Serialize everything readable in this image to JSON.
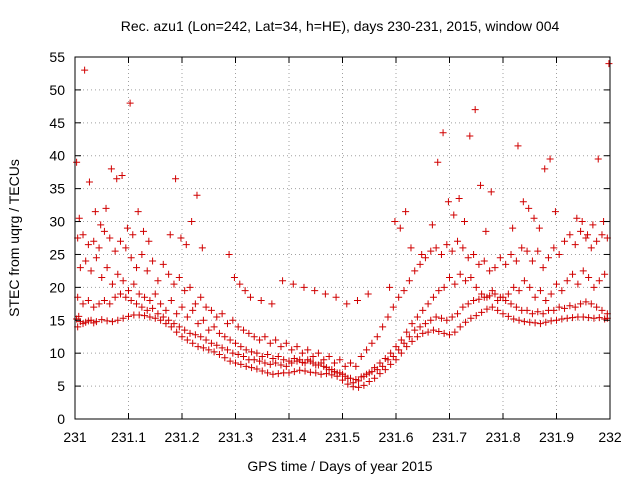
{
  "chart_data": {
    "type": "scatter",
    "title": "Rec. azu1 (Lon=242, Lat=34, h=HE), days 230-231, 2015, window 004",
    "xlabel": "GPS time / Days of year 2015",
    "ylabel": "STEC from uqrg / TECUs",
    "xlim": [
      231,
      232
    ],
    "ylim": [
      0,
      55
    ],
    "x_ticks": [
      "231",
      "231.1",
      "231.2",
      "231.3",
      "231.4",
      "231.5",
      "231.6",
      "231.7",
      "231.8",
      "231.9",
      "232"
    ],
    "y_ticks": [
      "0",
      "5",
      "10",
      "15",
      "20",
      "25",
      "30",
      "35",
      "40",
      "45",
      "50",
      "55"
    ],
    "grid": true,
    "marker": "+",
    "marker_color": "#d00000",
    "series": [
      {
        "x": [
          231.003,
          231.005,
          231.007,
          231.01,
          231.015,
          231.02,
          231.025,
          231.03,
          231.035,
          231.04,
          231.05,
          231.06,
          231.07,
          231.08,
          231.09,
          231.1,
          231.11,
          231.12,
          231.13,
          231.14,
          231.15,
          231.16,
          231.17,
          231.18,
          231.19,
          231.2,
          231.21,
          231.22,
          231.23,
          231.24,
          231.25,
          231.26,
          231.27,
          231.28,
          231.29,
          231.3,
          231.31,
          231.32,
          231.33,
          231.34,
          231.35,
          231.36,
          231.37,
          231.38,
          231.39,
          231.4,
          231.41,
          231.42,
          231.43,
          231.44,
          231.45,
          231.46,
          231.47,
          231.48,
          231.49,
          231.5,
          231.51,
          231.52,
          231.53,
          231.54,
          231.55,
          231.56,
          231.57,
          231.58,
          231.59,
          231.6,
          231.61,
          231.62,
          231.63,
          231.64,
          231.65,
          231.66,
          231.67,
          231.68,
          231.69,
          231.7,
          231.71,
          231.72,
          231.73,
          231.74,
          231.75,
          231.76,
          231.77,
          231.78,
          231.79,
          231.8,
          231.81,
          231.82,
          231.83,
          231.84,
          231.85,
          231.86,
          231.87,
          231.88,
          231.89,
          231.9,
          231.91,
          231.92,
          231.93,
          231.94,
          231.95,
          231.96,
          231.97,
          231.98,
          231.99,
          231.995
        ],
        "y": [
          15.2,
          14.0,
          15.6,
          14.8,
          14.5,
          14.7,
          14.9,
          15.0,
          14.6,
          14.8,
          15.1,
          14.9,
          14.8,
          15.0,
          15.3,
          15.6,
          15.8,
          15.8,
          15.7,
          15.5,
          15.3,
          15.0,
          14.5,
          14.0,
          13.2,
          12.5,
          12.0,
          11.5,
          11.0,
          10.8,
          10.5,
          10.2,
          9.8,
          9.3,
          8.8,
          8.5,
          8.3,
          8.0,
          7.8,
          7.6,
          7.3,
          7.0,
          6.8,
          6.9,
          7.0,
          7.0,
          7.2,
          7.4,
          7.3,
          7.1,
          7.0,
          6.8,
          6.9,
          6.7,
          6.5,
          5.9,
          5.3,
          4.9,
          4.8,
          5.1,
          5.7,
          6.2,
          6.9,
          7.5,
          8.3,
          9.0,
          10.0,
          11.0,
          11.8,
          12.5,
          13.0,
          13.2,
          13.5,
          13.3,
          13.0,
          12.8,
          13.2,
          14.0,
          14.7,
          15.3,
          15.7,
          16.2,
          16.7,
          17.0,
          16.5,
          16.0,
          15.6,
          15.2,
          15.0,
          14.8,
          14.7,
          14.6,
          14.5,
          14.7,
          14.9,
          15.0,
          15.2,
          15.3,
          15.4,
          15.5,
          15.5,
          15.4,
          15.3,
          15.4,
          15.2,
          15.3
        ]
      },
      {
        "x": [
          231.005,
          231.015,
          231.025,
          231.035,
          231.045,
          231.055,
          231.065,
          231.075,
          231.085,
          231.095,
          231.105,
          231.115,
          231.125,
          231.135,
          231.145,
          231.155,
          231.165,
          231.175,
          231.185,
          231.195,
          231.205,
          231.215,
          231.225,
          231.235,
          231.245,
          231.255,
          231.265,
          231.275,
          231.285,
          231.295,
          231.305,
          231.315,
          231.325,
          231.335,
          231.345,
          231.355,
          231.365,
          231.375,
          231.385,
          231.395,
          231.405,
          231.415,
          231.425,
          231.435,
          231.445,
          231.455,
          231.465,
          231.475,
          231.485,
          231.495,
          231.505,
          231.515,
          231.525,
          231.535,
          231.545,
          231.555,
          231.565,
          231.575,
          231.585,
          231.595,
          231.605,
          231.615,
          231.625,
          231.635,
          231.645,
          231.655,
          231.665,
          231.675,
          231.685,
          231.695,
          231.705,
          231.715,
          231.725,
          231.735,
          231.745,
          231.755,
          231.765,
          231.775,
          231.785,
          231.795,
          231.805,
          231.815,
          231.825,
          231.835,
          231.845,
          231.855,
          231.865,
          231.875,
          231.885,
          231.895,
          231.905,
          231.915,
          231.925,
          231.935,
          231.945,
          231.955,
          231.965,
          231.975,
          231.985,
          231.995
        ],
        "y": [
          18.5,
          17.5,
          18.0,
          17.0,
          17.5,
          18.0,
          17.5,
          18.5,
          19.0,
          18.5,
          18.0,
          17.5,
          17.0,
          16.5,
          16.8,
          16.0,
          15.5,
          15.0,
          14.5,
          14.0,
          13.5,
          13.0,
          12.8,
          12.5,
          12.0,
          11.5,
          11.2,
          10.8,
          10.5,
          10.0,
          9.8,
          9.5,
          9.0,
          9.0,
          8.8,
          8.5,
          8.3,
          8.5,
          8.2,
          8.0,
          8.5,
          8.8,
          8.6,
          9.0,
          8.5,
          8.2,
          8.0,
          7.5,
          7.2,
          7.0,
          6.5,
          6.2,
          6.0,
          6.4,
          6.8,
          7.2,
          7.5,
          8.0,
          9.0,
          9.5,
          10.5,
          11.5,
          12.5,
          13.5,
          14.0,
          14.5,
          15.0,
          15.5,
          15.3,
          15.0,
          15.5,
          16.0,
          17.0,
          17.5,
          18.0,
          18.2,
          18.5,
          18.7,
          19.0,
          18.5,
          18.0,
          17.5,
          17.0,
          16.5,
          16.5,
          16.0,
          16.3,
          16.0,
          16.5,
          16.5,
          17.0,
          16.8,
          17.2,
          17.0,
          17.5,
          17.8,
          17.5,
          17.0,
          16.5,
          16.0
        ]
      },
      {
        "x": [
          231.01,
          231.02,
          231.03,
          231.04,
          231.05,
          231.06,
          231.07,
          231.08,
          231.09,
          231.1,
          231.11,
          231.12,
          231.13,
          231.14,
          231.15,
          231.16,
          231.17,
          231.18,
          231.19,
          231.2,
          231.21,
          231.22,
          231.23,
          231.24,
          231.25,
          231.26,
          231.27,
          231.28,
          231.29,
          231.3,
          231.31,
          231.32,
          231.33,
          231.34,
          231.35,
          231.36,
          231.37,
          231.38,
          231.39,
          231.4,
          231.41,
          231.42,
          231.43,
          231.44,
          231.45,
          231.46,
          231.47,
          231.48,
          231.49,
          231.5,
          231.51,
          231.52,
          231.53,
          231.54,
          231.55,
          231.56,
          231.57,
          231.58,
          231.59,
          231.6,
          231.61,
          231.62,
          231.63,
          231.64,
          231.65,
          231.66,
          231.67,
          231.68,
          231.69,
          231.7,
          231.71,
          231.72,
          231.73,
          231.74,
          231.75,
          231.76,
          231.77,
          231.78,
          231.79,
          231.8,
          231.81,
          231.82,
          231.83,
          231.84,
          231.85,
          231.86,
          231.87,
          231.88,
          231.89,
          231.9,
          231.91,
          231.92,
          231.93,
          231.94,
          231.95,
          231.96,
          231.97,
          231.98,
          231.99
        ],
        "y": [
          23.0,
          24.0,
          22.5,
          24.5,
          21.5,
          23.0,
          20.5,
          22.0,
          21.0,
          19.5,
          20.5,
          19.0,
          18.5,
          18.0,
          19.0,
          17.5,
          16.5,
          18.0,
          16.0,
          17.0,
          15.5,
          16.5,
          14.5,
          15.0,
          13.5,
          14.0,
          13.0,
          12.5,
          12.0,
          11.5,
          11.0,
          10.5,
          10.2,
          10.0,
          9.5,
          9.8,
          9.2,
          9.5,
          9.0,
          8.8,
          9.2,
          9.0,
          8.5,
          8.8,
          8.2,
          8.5,
          7.8,
          7.5,
          7.0,
          6.8,
          6.2,
          5.5,
          5.8,
          6.5,
          7.0,
          7.8,
          8.5,
          9.2,
          10.0,
          11.0,
          12.0,
          13.2,
          14.5,
          15.5,
          16.5,
          17.5,
          18.5,
          19.5,
          20.0,
          21.5,
          20.5,
          22.0,
          21.0,
          21.5,
          20.0,
          19.0,
          18.5,
          19.5,
          18.0,
          18.5,
          19.0,
          20.0,
          19.5,
          21.0,
          20.0,
          18.5,
          19.5,
          18.0,
          19.0,
          20.5,
          19.5,
          21.0,
          22.0,
          20.5,
          22.5,
          21.5,
          20.0,
          21.0,
          22.0
        ]
      },
      {
        "x": [
          231.005,
          231.015,
          231.025,
          231.035,
          231.045,
          231.055,
          231.065,
          231.075,
          231.085,
          231.095,
          231.105,
          231.115,
          231.125,
          231.135,
          231.145,
          231.155,
          231.165,
          231.175,
          231.185,
          231.195,
          231.205,
          231.215,
          231.225,
          231.235,
          231.245,
          231.255,
          231.265,
          231.275,
          231.285,
          231.295,
          231.305,
          231.315,
          231.325,
          231.335,
          231.345,
          231.355,
          231.365,
          231.375,
          231.385,
          231.395,
          231.405,
          231.415,
          231.425,
          231.435,
          231.445,
          231.455,
          231.465,
          231.475,
          231.485,
          231.495,
          231.505,
          231.515,
          231.525,
          231.535,
          231.545,
          231.555,
          231.565,
          231.575,
          231.585,
          231.595,
          231.605,
          231.615,
          231.625,
          231.635,
          231.645,
          231.655,
          231.665,
          231.675,
          231.685,
          231.695,
          231.705,
          231.715,
          231.725,
          231.735,
          231.745,
          231.755,
          231.765,
          231.775,
          231.785,
          231.795,
          231.805,
          231.815,
          231.825,
          231.835,
          231.845,
          231.855,
          231.865,
          231.875,
          231.885,
          231.895,
          231.905,
          231.915,
          231.925,
          231.935,
          231.945,
          231.955,
          231.965,
          231.975,
          231.985,
          231.995
        ],
        "y": [
          27.5,
          28.0,
          26.5,
          27.0,
          26.0,
          28.5,
          27.5,
          25.5,
          27.0,
          26.0,
          24.5,
          23.0,
          25.0,
          22.5,
          24.0,
          21.0,
          23.5,
          22.0,
          20.5,
          21.5,
          19.5,
          20.0,
          17.5,
          18.5,
          17.0,
          16.5,
          15.5,
          16.0,
          14.5,
          15.0,
          14.0,
          13.5,
          13.0,
          12.5,
          12.0,
          12.5,
          11.5,
          12.0,
          11.0,
          11.5,
          10.5,
          11.0,
          10.0,
          10.5,
          9.5,
          10.0,
          9.0,
          9.5,
          8.5,
          9.0,
          8.0,
          8.5,
          8.0,
          9.5,
          10.5,
          11.5,
          12.5,
          14.0,
          15.5,
          17.0,
          18.5,
          19.5,
          21.0,
          22.5,
          23.5,
          24.5,
          25.5,
          26.0,
          25.0,
          26.5,
          25.5,
          27.0,
          26.0,
          24.5,
          25.0,
          23.5,
          24.0,
          22.5,
          23.0,
          24.5,
          23.5,
          25.0,
          24.0,
          26.0,
          25.5,
          24.0,
          25.5,
          23.0,
          24.5,
          26.0,
          25.0,
          27.0,
          28.0,
          26.5,
          28.5,
          27.5,
          26.0,
          27.0,
          28.0,
          27.5
        ]
      },
      {
        "x": [
          231.003,
          231.008,
          231.018,
          231.027,
          231.038,
          231.048,
          231.058,
          231.068,
          231.078,
          231.088,
          231.098,
          231.103,
          231.108,
          231.118,
          231.128,
          231.138,
          231.178,
          231.188,
          231.198,
          231.208,
          231.218,
          231.228,
          231.238,
          231.288,
          231.298,
          231.308,
          231.318,
          231.328,
          231.348,
          231.368,
          231.388,
          231.408,
          231.428,
          231.448,
          231.468,
          231.488,
          231.508,
          231.528,
          231.548,
          231.588,
          231.598,
          231.608,
          231.618,
          231.628,
          231.648,
          231.668,
          231.678,
          231.688,
          231.698,
          231.708,
          231.718,
          231.728,
          231.738,
          231.748,
          231.758,
          231.768,
          231.778,
          231.818,
          231.828,
          231.838,
          231.848,
          231.858,
          231.868,
          231.878,
          231.888,
          231.898,
          231.938,
          231.948,
          231.958,
          231.968,
          231.978,
          231.988,
          231.998
        ],
        "y": [
          39.0,
          30.5,
          53.0,
          36.0,
          31.5,
          29.5,
          32.0,
          38.0,
          36.5,
          37.0,
          29.0,
          48.0,
          28.0,
          31.5,
          28.5,
          27.0,
          28.0,
          36.5,
          27.5,
          26.5,
          30.0,
          34.0,
          26.0,
          25.0,
          21.5,
          20.5,
          19.5,
          18.5,
          18.0,
          17.5,
          21.0,
          20.5,
          20.0,
          19.5,
          19.0,
          18.5,
          17.5,
          18.0,
          19.0,
          20.0,
          30.0,
          29.0,
          31.5,
          26.0,
          25.0,
          29.5,
          39.0,
          43.5,
          33.0,
          31.0,
          33.5,
          30.0,
          43.0,
          47.0,
          35.5,
          28.5,
          34.5,
          29.0,
          41.5,
          33.0,
          32.0,
          30.5,
          29.0,
          38.0,
          39.5,
          31.5,
          30.5,
          30.0,
          28.0,
          29.5,
          39.5,
          30.0,
          54.0
        ]
      }
    ]
  }
}
